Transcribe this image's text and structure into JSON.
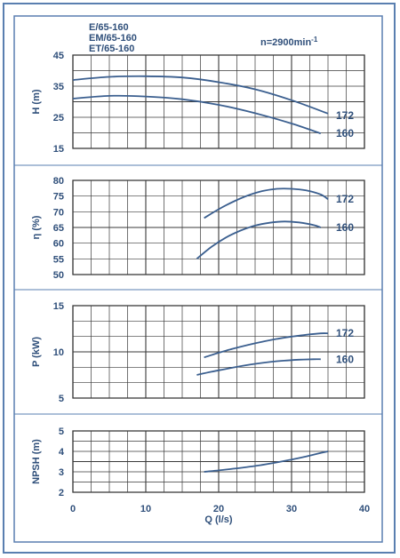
{
  "header": {
    "models": [
      "E/65-160",
      "EM/65-160",
      "ET/65-160"
    ],
    "speed_prefix": "n=2900min",
    "speed_sup": "-1"
  },
  "colors": {
    "frame": "#5a7fb0",
    "grid": "#3a3a3a",
    "curve": "#3b5f8f",
    "label": "#2f4f7a",
    "background": "#ffffff"
  },
  "chart_data": [
    {
      "type": "line",
      "ylabel": "H (m)",
      "ylim": [
        15,
        45
      ],
      "yticks": [
        15,
        25,
        35,
        45
      ],
      "xlim": [
        0,
        40
      ],
      "grid": true,
      "series": [
        {
          "name": "172",
          "x": [
            0,
            5,
            10,
            15,
            20,
            25,
            30,
            35
          ],
          "values": [
            37,
            38,
            38.2,
            37.8,
            36.3,
            34,
            30.5,
            26.2
          ]
        },
        {
          "name": "160",
          "x": [
            0,
            5,
            10,
            15,
            20,
            25,
            30,
            34
          ],
          "values": [
            31,
            31.9,
            31.7,
            30.8,
            29,
            26.3,
            23,
            19.8
          ]
        }
      ]
    },
    {
      "type": "line",
      "ylabel": "η (%)",
      "ylim": [
        50,
        80
      ],
      "yticks": [
        50,
        55,
        60,
        65,
        70,
        75,
        80
      ],
      "xlim": [
        0,
        40
      ],
      "grid": true,
      "series": [
        {
          "name": "172",
          "x": [
            18,
            20,
            22,
            24,
            26,
            28,
            30,
            32,
            34,
            35
          ],
          "values": [
            68,
            70.8,
            73.2,
            75.2,
            76.6,
            77.3,
            77.3,
            76.8,
            75.5,
            74
          ]
        },
        {
          "name": "160",
          "x": [
            17,
            19,
            21,
            23,
            25,
            27,
            29,
            31,
            33,
            34
          ],
          "values": [
            55,
            58.8,
            61.8,
            64,
            65.6,
            66.5,
            66.9,
            66.6,
            65.8,
            65
          ]
        }
      ]
    },
    {
      "type": "line",
      "ylabel": "P (kW)",
      "ylim": [
        5,
        15
      ],
      "yticks": [
        5,
        10,
        15
      ],
      "xlim": [
        0,
        40
      ],
      "grid": true,
      "series": [
        {
          "name": "172",
          "x": [
            18,
            20,
            22,
            24,
            26,
            28,
            30,
            32,
            34,
            35
          ],
          "values": [
            9.4,
            9.9,
            10.35,
            10.75,
            11.1,
            11.4,
            11.65,
            11.85,
            12,
            12
          ]
        },
        {
          "name": "160",
          "x": [
            17,
            19,
            21,
            23,
            25,
            27,
            29,
            31,
            33,
            34
          ],
          "values": [
            7.5,
            7.85,
            8.15,
            8.45,
            8.7,
            8.9,
            9.05,
            9.15,
            9.2,
            9.2
          ]
        }
      ]
    },
    {
      "type": "line",
      "ylabel": "NPSH (m)",
      "xlabel": "Q (l/s)",
      "ylim": [
        2,
        5
      ],
      "yticks": [
        2,
        3,
        4,
        5
      ],
      "xlim": [
        0,
        40
      ],
      "xticks": [
        0,
        10,
        20,
        30,
        40
      ],
      "grid": true,
      "series": [
        {
          "name": "",
          "x": [
            18,
            20,
            22,
            24,
            26,
            28,
            30,
            32,
            34,
            35
          ],
          "values": [
            3,
            3.07,
            3.15,
            3.24,
            3.34,
            3.46,
            3.6,
            3.75,
            3.92,
            4
          ]
        }
      ]
    }
  ]
}
